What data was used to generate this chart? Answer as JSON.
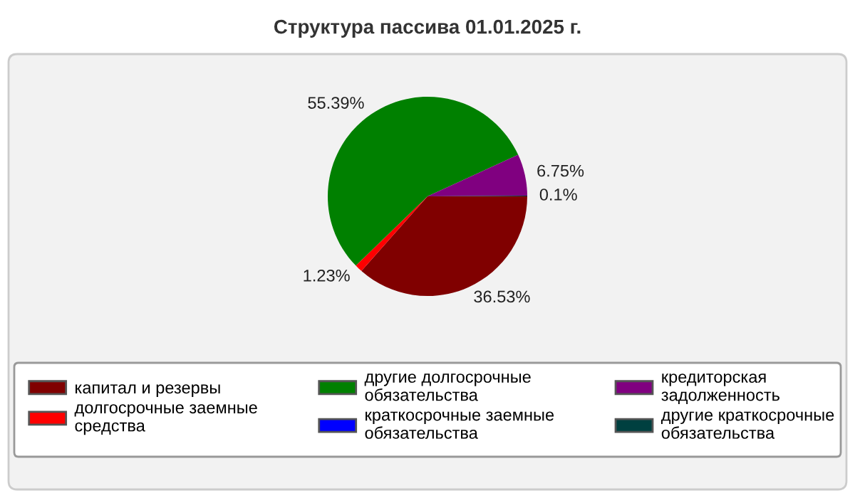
{
  "chart_data": {
    "type": "pie",
    "title": "Структура пассива 01.01.2025 г.",
    "categories": [
      "капитал и резервы",
      "долгосрочные заемные средства",
      "другие долгосрочные обязательства",
      "краткосрочные заемные обязательства",
      "кредиторская задолженность",
      "другие краткосрочные обязательства"
    ],
    "values": [
      36.53,
      1.23,
      55.39,
      0,
      6.75,
      0.1
    ],
    "value_labels": [
      "36.53%",
      "1.23%",
      "55.39%",
      null,
      "6.75%",
      "0.1%"
    ],
    "colors": [
      "#800000",
      "#ff0000",
      "#008000",
      "#0000ff",
      "#800080",
      "#004040"
    ],
    "legend": "bottom"
  }
}
